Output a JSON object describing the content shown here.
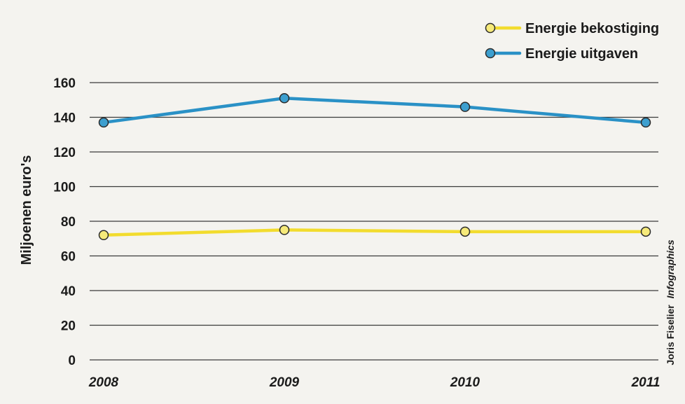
{
  "chart_data": {
    "type": "line",
    "title": "",
    "xlabel": "",
    "ylabel": "Miljoenen euro's",
    "categories": [
      "2008",
      "2009",
      "2010",
      "2011"
    ],
    "ylim": [
      0,
      160
    ],
    "yticks": [
      0,
      20,
      40,
      60,
      80,
      100,
      120,
      140,
      160
    ],
    "grid": true,
    "legend_position": "top-right",
    "series": [
      {
        "name": "Energie bekostiging",
        "values": [
          72,
          75,
          74,
          74
        ],
        "color": "#f2dc2e",
        "marker_color": "#f6ea7a"
      },
      {
        "name": "Energie uitgaven",
        "values": [
          137,
          151,
          146,
          137
        ],
        "color": "#2a91c6",
        "marker_color": "#3d9fcf"
      }
    ]
  },
  "credit": {
    "author": "Joris Fiselier",
    "agency": "Infographics"
  }
}
